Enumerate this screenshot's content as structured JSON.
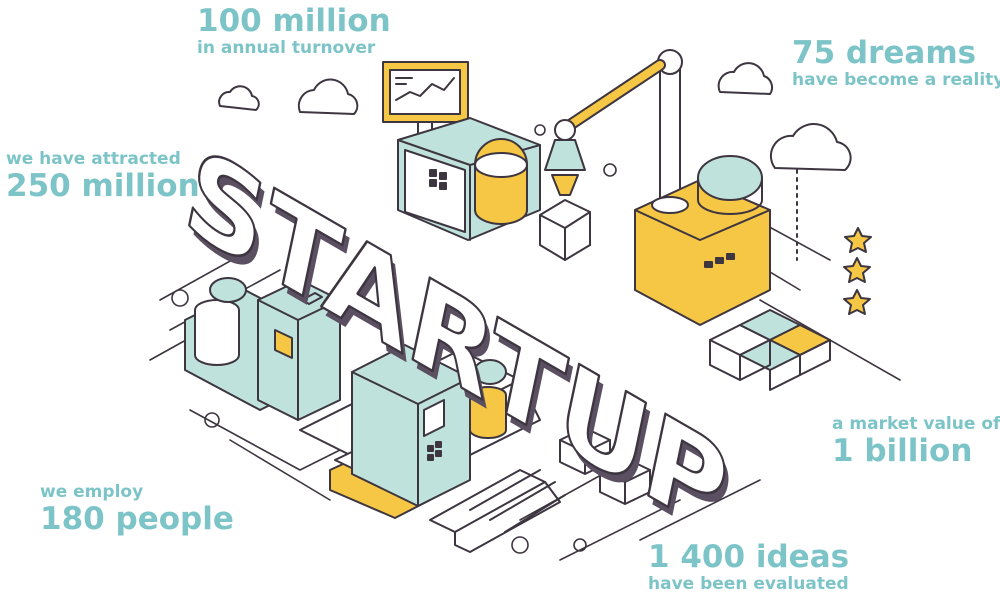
{
  "illustration": {
    "word": "STARTUP",
    "colors": {
      "accent_teal": "#7cc4c7",
      "accent_yellow": "#f6c744",
      "mint": "#bfe3dc",
      "dark_purple": "#5b4f62",
      "outline": "#3d3540"
    }
  },
  "stats": {
    "turnover": {
      "value": "100 million",
      "caption": "in annual turnover"
    },
    "dreams": {
      "value": "75 dreams",
      "caption": "have become a reality"
    },
    "attracted": {
      "caption": "we have attracted",
      "value": "250 million"
    },
    "market": {
      "caption": "a market value of",
      "value": "1 billion"
    },
    "employ": {
      "caption": "we employ",
      "value": "180 people"
    },
    "ideas": {
      "value": "1 400 ideas",
      "caption": "have been evaluated"
    }
  }
}
